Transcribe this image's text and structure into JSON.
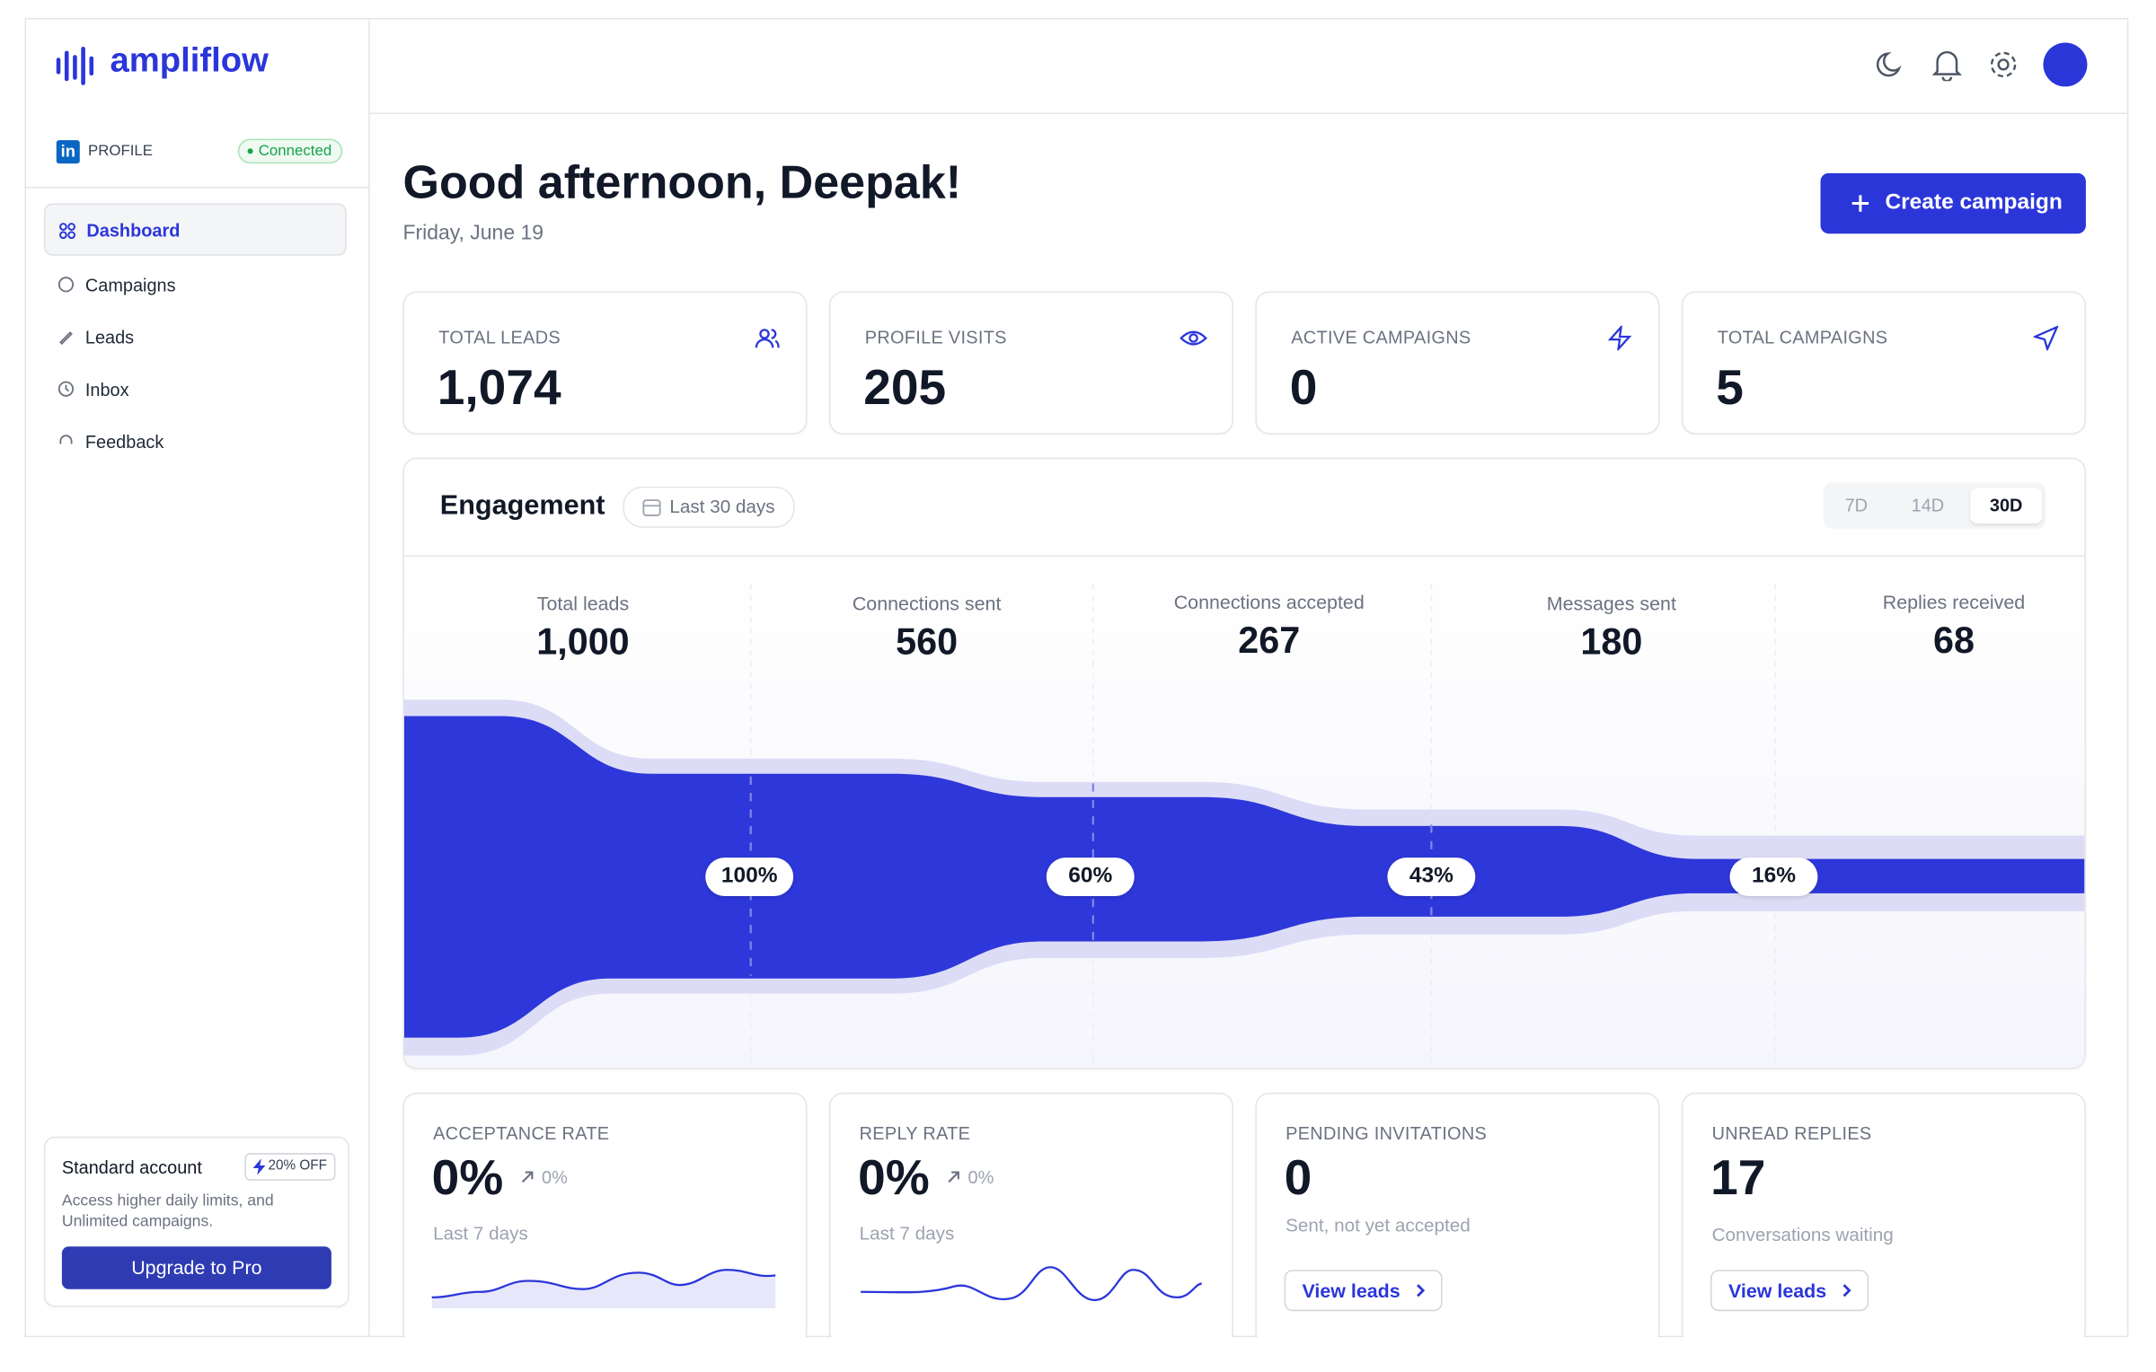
{
  "brand": "ampliflow",
  "sidebar": {
    "profile": "PROFILE",
    "status": "Connected",
    "nav": [
      "Dashboard",
      "Campaigns",
      "Leads",
      "Inbox",
      "Feedback"
    ],
    "upgrade": {
      "title": "Standard account",
      "badge": "20% OFF",
      "text": "Access higher daily limits, and Unlimited campaigns.",
      "button": "Upgrade to Pro"
    }
  },
  "header": {
    "greeting": "Good afternoon, Deepak!",
    "date": "Friday, June 19",
    "button": "Create campaign"
  },
  "stats": [
    {
      "label": "TOTAL LEADS",
      "value": "1,074"
    },
    {
      "label": "PROFILE VISITS",
      "value": "205"
    },
    {
      "label": "ACTIVE CAMPAIGNS",
      "value": "0"
    },
    {
      "label": "TOTAL CAMPAIGNS",
      "value": "5"
    }
  ],
  "engagement": {
    "title": "Engagement",
    "range": "Last 30 days",
    "tabs": [
      "7D",
      "14D",
      "30D"
    ],
    "stages": [
      {
        "label": "Total leads",
        "value": "1,000"
      },
      {
        "label": "Connections sent",
        "value": "560"
      },
      {
        "label": "Connections accepted",
        "value": "267"
      },
      {
        "label": "Messages sent",
        "value": "180"
      },
      {
        "label": "Replies received",
        "value": "68"
      }
    ],
    "rates": [
      "100%",
      "60%",
      "43%",
      "16%"
    ]
  },
  "metrics": [
    {
      "label": "ACCEPTANCE RATE",
      "value": "0%",
      "change": "0%",
      "note": "Last 7 days"
    },
    {
      "label": "REPLY RATE",
      "value": "0%",
      "change": "0%",
      "note": "Last 7 days"
    },
    {
      "label": "PENDING INVITATIONS",
      "value": "0",
      "note": "Sent, not yet accepted",
      "link": "View leads"
    },
    {
      "label": "UNREAD REPLIES",
      "value": "17",
      "note": "Conversations waiting",
      "link": "View leads"
    }
  ]
}
